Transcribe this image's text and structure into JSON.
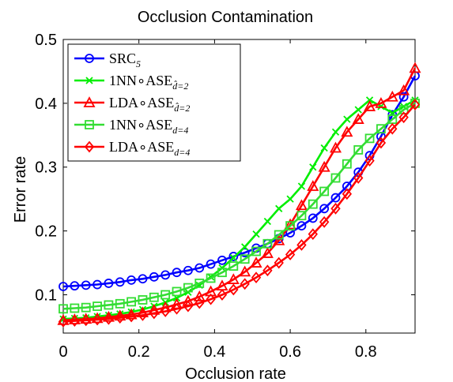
{
  "chart_data": {
    "type": "line",
    "title": "Occlusion Contamination",
    "xlabel": "Occlusion rate",
    "ylabel": "Error rate",
    "xlim": [
      0,
      0.93
    ],
    "ylim": [
      0.04,
      0.5
    ],
    "xticks": [
      0,
      0.2,
      0.4,
      0.6,
      0.8
    ],
    "xtick_labels": [
      "0",
      "0.2",
      "0.4",
      "0.6",
      "0.8"
    ],
    "yticks": [
      0.1,
      0.2,
      0.3,
      0.4,
      0.5
    ],
    "ytick_labels": [
      "0.1",
      "0.2",
      "0.3",
      "0.4",
      "0.5"
    ],
    "grid": false,
    "legend_position": "top-left",
    "x": [
      0,
      0.03,
      0.06,
      0.09,
      0.12,
      0.15,
      0.18,
      0.21,
      0.24,
      0.27,
      0.3,
      0.33,
      0.36,
      0.39,
      0.42,
      0.45,
      0.48,
      0.51,
      0.54,
      0.57,
      0.6,
      0.63,
      0.66,
      0.69,
      0.72,
      0.75,
      0.78,
      0.81,
      0.84,
      0.87,
      0.9,
      0.93
    ],
    "series": [
      {
        "name": "SRC",
        "name_sub": "5",
        "color": "#0000ff",
        "marker": "circle",
        "values": [
          0.113,
          0.114,
          0.115,
          0.116,
          0.118,
          0.12,
          0.123,
          0.125,
          0.128,
          0.131,
          0.135,
          0.138,
          0.142,
          0.148,
          0.154,
          0.16,
          0.166,
          0.173,
          0.18,
          0.188,
          0.197,
          0.208,
          0.22,
          0.235,
          0.252,
          0.27,
          0.292,
          0.318,
          0.348,
          0.382,
          0.41,
          0.443
        ]
      },
      {
        "name": "1NN∘ASE",
        "name_sub": "d̂=2",
        "color": "#00ee00",
        "marker": "x",
        "values": [
          0.062,
          0.063,
          0.064,
          0.066,
          0.068,
          0.07,
          0.073,
          0.077,
          0.082,
          0.088,
          0.095,
          0.104,
          0.115,
          0.128,
          0.142,
          0.158,
          0.175,
          0.195,
          0.215,
          0.235,
          0.25,
          0.27,
          0.3,
          0.33,
          0.355,
          0.375,
          0.39,
          0.405,
          0.395,
          0.385,
          0.395,
          0.405
        ]
      },
      {
        "name": "LDA∘ASE",
        "name_sub": "d̂=2",
        "color": "#ff0000",
        "marker": "triangle",
        "values": [
          0.06,
          0.061,
          0.062,
          0.063,
          0.065,
          0.067,
          0.069,
          0.072,
          0.076,
          0.08,
          0.085,
          0.09,
          0.097,
          0.105,
          0.114,
          0.124,
          0.136,
          0.15,
          0.165,
          0.185,
          0.21,
          0.24,
          0.27,
          0.3,
          0.33,
          0.355,
          0.375,
          0.395,
          0.4,
          0.41,
          0.42,
          0.455
        ]
      },
      {
        "name": "1NN∘ASE",
        "name_sub": "d=4",
        "color": "#33dd33",
        "marker": "square",
        "values": [
          0.078,
          0.079,
          0.08,
          0.082,
          0.084,
          0.086,
          0.089,
          0.092,
          0.096,
          0.1,
          0.105,
          0.111,
          0.118,
          0.126,
          0.135,
          0.145,
          0.156,
          0.168,
          0.18,
          0.194,
          0.208,
          0.224,
          0.242,
          0.262,
          0.283,
          0.305,
          0.327,
          0.345,
          0.36,
          0.375,
          0.39,
          0.4
        ]
      },
      {
        "name": "LDA∘ASE",
        "name_sub": "d=4",
        "color": "#ff0000",
        "marker": "diamond",
        "values": [
          0.058,
          0.059,
          0.06,
          0.061,
          0.062,
          0.064,
          0.066,
          0.068,
          0.071,
          0.074,
          0.078,
          0.082,
          0.087,
          0.093,
          0.1,
          0.108,
          0.117,
          0.127,
          0.138,
          0.15,
          0.163,
          0.178,
          0.195,
          0.214,
          0.235,
          0.258,
          0.283,
          0.31,
          0.338,
          0.36,
          0.378,
          0.398
        ]
      }
    ]
  }
}
